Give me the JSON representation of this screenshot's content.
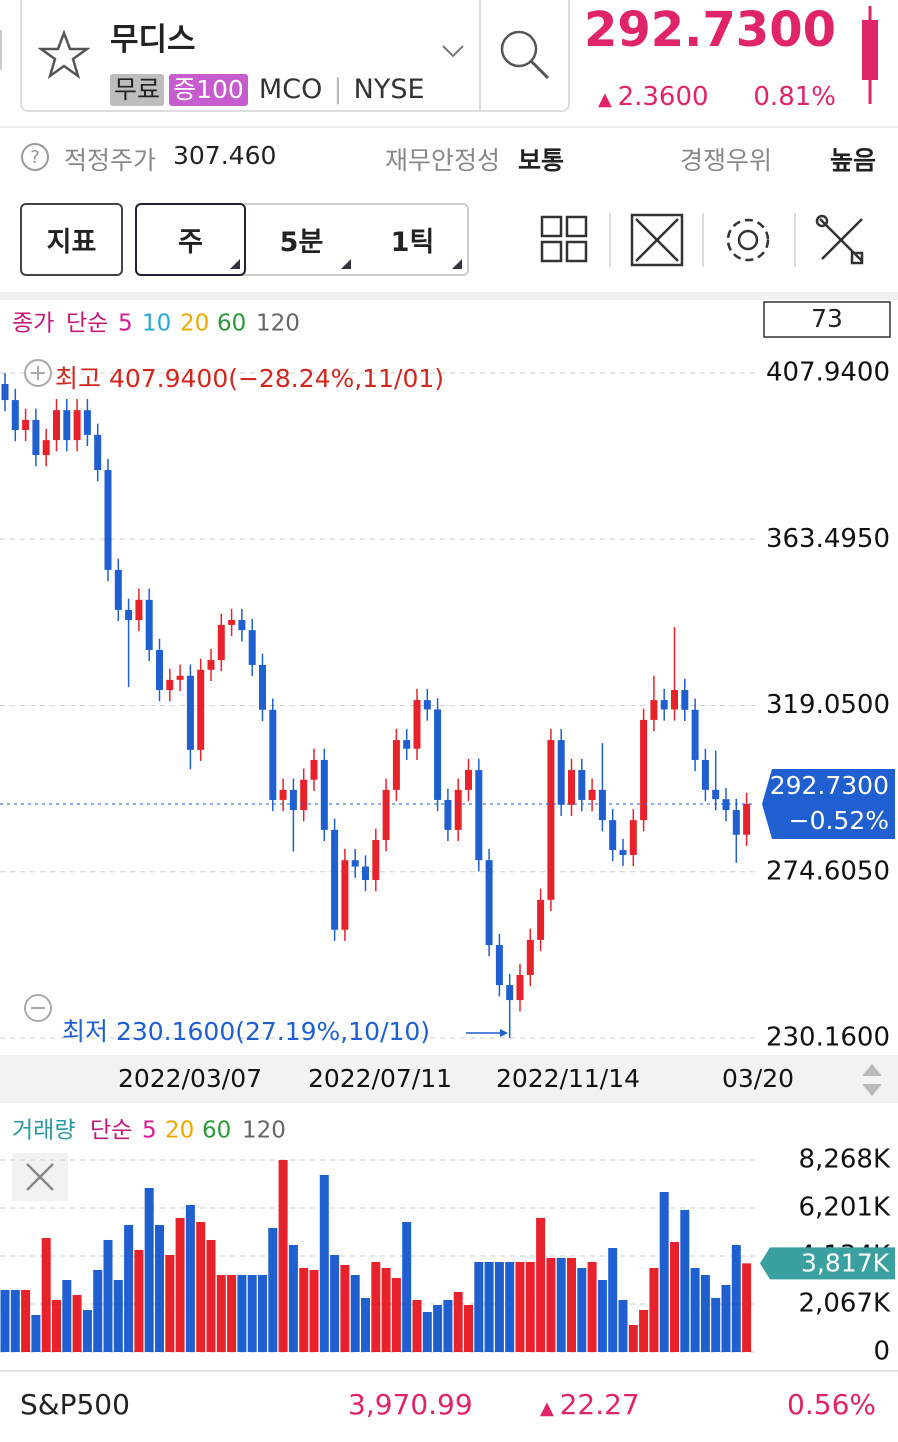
{
  "header": {
    "name": "무디스",
    "tags": [
      "무료",
      "증100"
    ],
    "ticker": "MCO",
    "exchange": "NYSE",
    "price": "292.7300",
    "change": "2.3600",
    "change_pct": "0.81%"
  },
  "info": [
    {
      "label": "적정주가",
      "value": "307.460"
    },
    {
      "label": "재무안정성",
      "value": "보통"
    },
    {
      "label": "경쟁우위",
      "value": "높음"
    }
  ],
  "toolbar": {
    "indicator": "지표",
    "periods": [
      "주",
      "5분",
      "1틱"
    ]
  },
  "chart_data": [
    {
      "type": "candlestick",
      "series_label": "종가",
      "method": "단순",
      "ma_legend": [
        {
          "name": "5",
          "color": "#d81b9a"
        },
        {
          "name": "10",
          "color": "#29a8d8"
        },
        {
          "name": "20",
          "color": "#f0a800"
        },
        {
          "name": "60",
          "color": "#2a9a3a"
        },
        {
          "name": "120",
          "color": "#666666"
        }
      ],
      "count": "73",
      "up_color": "#e8222b",
      "down_color": "#1f5fd0",
      "candles": [
        [
          405.0,
          407.94,
          397.7,
          400.7
        ],
        [
          400.7,
          403.7,
          389.7,
          392.7
        ],
        [
          392.7,
          398.4,
          389.7,
          395.4
        ],
        [
          395.4,
          398.4,
          383.0,
          386.0
        ],
        [
          386.0,
          393.0,
          383.0,
          390.0
        ],
        [
          390.0,
          401.0,
          387.0,
          398.0
        ],
        [
          398.0,
          401.0,
          387.0,
          390.0
        ],
        [
          390.0,
          401.0,
          387.0,
          398.0
        ],
        [
          398.0,
          401.0,
          388.4,
          391.4
        ],
        [
          391.4,
          394.4,
          379.0,
          382.0
        ],
        [
          382.0,
          385.0,
          352.3,
          355.3
        ],
        [
          355.3,
          358.3,
          341.6,
          344.6
        ],
        [
          344.6,
          347.6,
          324.0,
          341.9
        ],
        [
          341.9,
          350.3,
          338.9,
          347.3
        ],
        [
          347.3,
          350.3,
          330.9,
          333.9
        ],
        [
          333.9,
          336.9,
          320.2,
          323.2
        ],
        [
          323.2,
          328.9,
          320.2,
          325.9
        ],
        [
          325.9,
          330.0,
          322.9,
          327.0
        ],
        [
          327.0,
          330.0,
          302.0,
          307.2
        ],
        [
          307.2,
          331.6,
          304.2,
          328.6
        ],
        [
          328.6,
          334.2,
          325.6,
          331.2
        ],
        [
          331.2,
          343.6,
          328.2,
          340.6
        ],
        [
          340.6,
          344.9,
          337.6,
          341.9
        ],
        [
          341.9,
          344.9,
          336.2,
          339.2
        ],
        [
          339.2,
          342.2,
          326.9,
          329.9
        ],
        [
          329.9,
          332.9,
          314.9,
          317.9
        ],
        [
          317.9,
          320.9,
          290.8,
          293.8
        ],
        [
          293.8,
          299.5,
          290.8,
          296.5
        ],
        [
          296.5,
          299.5,
          280.0,
          291.1
        ],
        [
          291.1,
          302.2,
          288.1,
          299.2
        ],
        [
          299.2,
          307.5,
          296.2,
          304.5
        ],
        [
          304.5,
          307.5,
          282.8,
          285.8
        ],
        [
          285.8,
          288.8,
          256.1,
          259.1
        ],
        [
          259.1,
          280.7,
          256.1,
          277.7
        ],
        [
          277.7,
          280.7,
          273.0,
          276.0
        ],
        [
          276.0,
          279.0,
          269.4,
          272.4
        ],
        [
          272.4,
          286.1,
          269.4,
          283.1
        ],
        [
          283.1,
          299.5,
          280.1,
          296.5
        ],
        [
          296.5,
          312.8,
          293.5,
          309.8
        ],
        [
          309.8,
          312.8,
          304.5,
          307.5
        ],
        [
          307.5,
          323.5,
          304.5,
          320.5
        ],
        [
          320.5,
          323.5,
          315.0,
          318.0
        ],
        [
          318.0,
          321.0,
          290.8,
          293.8
        ],
        [
          293.8,
          296.8,
          282.8,
          285.8
        ],
        [
          285.8,
          299.5,
          282.8,
          296.5
        ],
        [
          296.5,
          304.8,
          293.5,
          301.8
        ],
        [
          301.8,
          304.8,
          274.7,
          277.7
        ],
        [
          277.7,
          280.7,
          252.0,
          255.0
        ],
        [
          255.0,
          258.0,
          241.3,
          244.3
        ],
        [
          244.3,
          247.3,
          230.16,
          240.3
        ],
        [
          240.3,
          250.0,
          237.3,
          247.0
        ],
        [
          247.0,
          259.4,
          244.0,
          256.4
        ],
        [
          256.4,
          270.1,
          253.4,
          267.1
        ],
        [
          267.1,
          312.8,
          264.1,
          309.8
        ],
        [
          309.8,
          312.8,
          289.5,
          292.5
        ],
        [
          292.5,
          304.8,
          289.5,
          301.8
        ],
        [
          301.8,
          304.8,
          290.8,
          293.8
        ],
        [
          293.8,
          299.5,
          290.8,
          296.5
        ],
        [
          296.5,
          309.0,
          285.4,
          288.4
        ],
        [
          288.4,
          291.4,
          277.4,
          280.4
        ],
        [
          280.4,
          283.4,
          276.1,
          279.1
        ],
        [
          279.1,
          291.4,
          276.1,
          288.4
        ],
        [
          288.4,
          318.2,
          285.4,
          315.2
        ],
        [
          315.2,
          327.0,
          312.2,
          320.5
        ],
        [
          320.5,
          323.5,
          315.0,
          318.0
        ],
        [
          318.0,
          340.0,
          315.0,
          323.2
        ],
        [
          323.2,
          326.2,
          314.9,
          317.9
        ],
        [
          317.9,
          320.9,
          301.5,
          304.5
        ],
        [
          304.5,
          307.5,
          293.5,
          296.5
        ],
        [
          296.5,
          307.0,
          291.0,
          294.0
        ],
        [
          294.0,
          297.0,
          288.1,
          291.1
        ],
        [
          291.1,
          294.1,
          277.0,
          284.5
        ],
        [
          284.5,
          295.7,
          281.5,
          292.73
        ]
      ],
      "ylim": [
        230.16,
        407.94
      ],
      "yticks": [
        {
          "value": 407.94,
          "label": "407.9400"
        },
        {
          "value": 363.495,
          "label": "363.4950"
        },
        {
          "value": 319.05,
          "label": "319.0500"
        },
        {
          "value": 274.605,
          "label": "274.6050"
        },
        {
          "value": 230.16,
          "label": "230.1600"
        }
      ],
      "grid": true,
      "x_labels": [
        "2022/03/07",
        "2022/07/11",
        "2022/11/14",
        "03/20"
      ],
      "high_annotation": "최고 407.9400(−28.24%,11/01)",
      "low_annotation": "최저 230.1600(27.19%,10/10)",
      "current_value": 292.73,
      "current_label": "292.7300",
      "current_change": "−0.52%"
    },
    {
      "type": "bar",
      "series_label": "거래량",
      "method": "단순",
      "ma_legend": [
        {
          "name": "5",
          "color": "#d81b9a"
        },
        {
          "name": "20",
          "color": "#f0a800"
        },
        {
          "name": "60",
          "color": "#2a9a3a"
        },
        {
          "name": "120",
          "color": "#666666"
        }
      ],
      "values": [
        2670,
        2670,
        2670,
        1594,
        4910,
        2240,
        3101,
        2455,
        1809,
        3532,
        4824,
        3101,
        5470,
        4393,
        7063,
        5470,
        4178,
        5771,
        6331,
        5599,
        4824,
        3316,
        3316,
        3316,
        3316,
        3316,
        5341,
        8268,
        4608,
        3618,
        3532,
        7623,
        4178,
        3747,
        3316,
        2326,
        3876,
        3618,
        3187,
        5599,
        2240,
        1723,
        2024,
        2240,
        2584,
        2024,
        3876,
        3876,
        3876,
        3876,
        3876,
        3876,
        5771,
        4049,
        4049,
        4049,
        3618,
        3876,
        3101,
        4479,
        2240,
        1163,
        1809,
        3618,
        6891,
        4738,
        6116,
        3618,
        3316,
        2326,
        2886,
        4608,
        3817
      ],
      "ylim": [
        0,
        8268
      ],
      "yticks": [
        {
          "value": 8268,
          "label": "8,268K"
        },
        {
          "value": 6201,
          "label": "6,201K"
        },
        {
          "value": 4134,
          "label": "4,134K"
        },
        {
          "value": 2067,
          "label": "2,067K"
        },
        0
      ],
      "grid": true,
      "current_value": 3817,
      "current_label": "3,817K"
    }
  ],
  "footer": {
    "index": "S&P500",
    "value": "3,970.99",
    "change": "22.27",
    "change_pct": "0.56%"
  }
}
